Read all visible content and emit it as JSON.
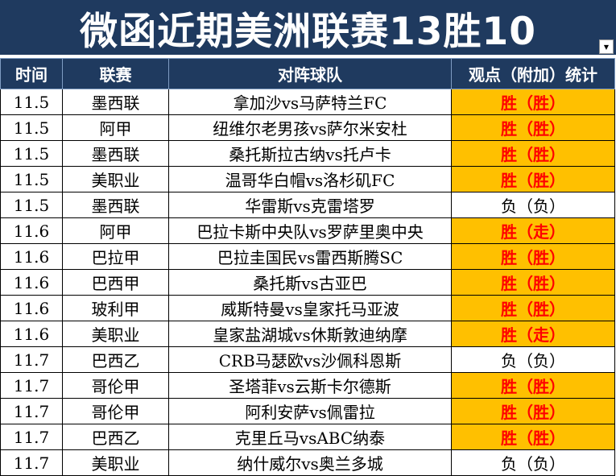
{
  "title": "微函近期美洲联赛13胜10",
  "headers": [
    "时间",
    "联赛",
    "对阵球队",
    "观点（附加）统计"
  ],
  "rows": [
    {
      "date": "11.5",
      "league": "墨西联",
      "match": "拿加沙vs马萨特兰FC",
      "result": "胜（胜）",
      "hit": true
    },
    {
      "date": "11.5",
      "league": "阿甲",
      "match": "纽维尔老男孩vs萨尔米安杜",
      "result": "胜（胜）",
      "hit": true
    },
    {
      "date": "11.5",
      "league": "墨西联",
      "match": "桑托斯拉古纳vs托卢卡",
      "result": "胜（胜）",
      "hit": true
    },
    {
      "date": "11.5",
      "league": "美职业",
      "match": "温哥华白帽vs洛杉矶FC",
      "result": "胜（胜）",
      "hit": true
    },
    {
      "date": "11.5",
      "league": "墨西联",
      "match": "华雷斯vs克雷塔罗",
      "result": "负（负）",
      "hit": false
    },
    {
      "date": "11.6",
      "league": "阿甲",
      "match": "巴拉卡斯中央队vs罗萨里奥中央",
      "result": "胜（走）",
      "hit": true
    },
    {
      "date": "11.6",
      "league": "巴拉甲",
      "match": "巴拉圭国民vs雷西斯腾SC",
      "result": "胜（胜）",
      "hit": true
    },
    {
      "date": "11.6",
      "league": "巴西甲",
      "match": "桑托斯vs古亚巴",
      "result": "胜（胜）",
      "hit": true
    },
    {
      "date": "11.6",
      "league": "玻利甲",
      "match": "威斯特曼vs皇家托马亚波",
      "result": "胜（胜）",
      "hit": true
    },
    {
      "date": "11.6",
      "league": "美职业",
      "match": "皇家盐湖城vs休斯敦迪纳摩",
      "result": "胜（走）",
      "hit": true
    },
    {
      "date": "11.7",
      "league": "巴西乙",
      "match": "CRB马瑟欧vs沙佩科恩斯",
      "result": "负（负）",
      "hit": false
    },
    {
      "date": "11.7",
      "league": "哥伦甲",
      "match": "圣塔菲vs云斯卡尔德斯",
      "result": "胜（胜）",
      "hit": true
    },
    {
      "date": "11.7",
      "league": "哥伦甲",
      "match": "阿利安萨vs佩雷拉",
      "result": "胜（胜）",
      "hit": true
    },
    {
      "date": "11.7",
      "league": "巴西乙",
      "match": "克里丘马vsABC纳泰",
      "result": "胜（胜）",
      "hit": true
    },
    {
      "date": "11.7",
      "league": "美职业",
      "match": "纳什威尔vs奥兰多城",
      "result": "负（负）",
      "hit": false
    }
  ],
  "colors": {
    "header_bg": "#1f3a5f",
    "hit_bg": "#ffc000",
    "hit_text": "#ff0000"
  },
  "icons": {
    "filter": "filter-dropdown-icon"
  }
}
